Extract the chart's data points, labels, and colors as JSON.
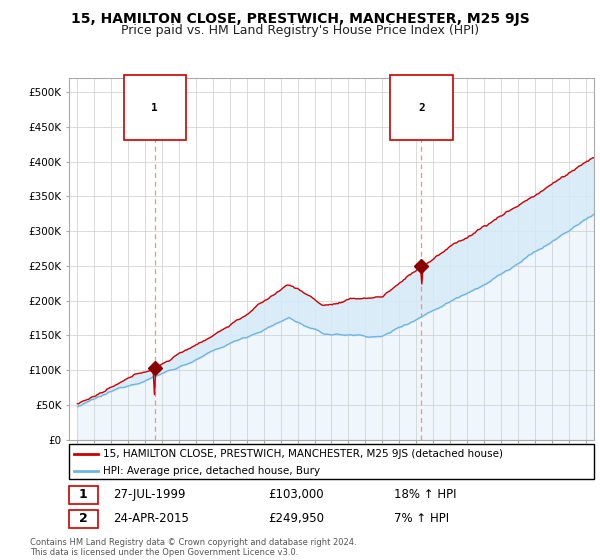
{
  "title": "15, HAMILTON CLOSE, PRESTWICH, MANCHESTER, M25 9JS",
  "subtitle": "Price paid vs. HM Land Registry's House Price Index (HPI)",
  "ylabel_ticks": [
    "£0",
    "£50K",
    "£100K",
    "£150K",
    "£200K",
    "£250K",
    "£300K",
    "£350K",
    "£400K",
    "£450K",
    "£500K"
  ],
  "ytick_values": [
    0,
    50000,
    100000,
    150000,
    200000,
    250000,
    300000,
    350000,
    400000,
    450000,
    500000
  ],
  "ylim": [
    0,
    520000
  ],
  "xlim_start": 1994.5,
  "xlim_end": 2025.5,
  "purchase1_x": 1999.57,
  "purchase1_y": 103000,
  "purchase2_x": 2015.31,
  "purchase2_y": 249950,
  "purchase1_date": "27-JUL-1999",
  "purchase1_price": "£103,000",
  "purchase1_hpi": "18% ↑ HPI",
  "purchase2_date": "24-APR-2015",
  "purchase2_price": "£249,950",
  "purchase2_hpi": "7% ↑ HPI",
  "hpi_line_color": "#6EB4E0",
  "hpi_fill_color": "#D6EAF8",
  "price_line_color": "#CC0000",
  "dot_color": "#8B0000",
  "vline_color": "#FF8888",
  "legend_label_price": "15, HAMILTON CLOSE, PRESTWICH, MANCHESTER, M25 9JS (detached house)",
  "legend_label_hpi": "HPI: Average price, detached house, Bury",
  "footer": "Contains HM Land Registry data © Crown copyright and database right 2024.\nThis data is licensed under the Open Government Licence v3.0.",
  "background_color": "#ffffff",
  "grid_color": "#cccccc",
  "title_fontsize": 10,
  "subtitle_fontsize": 9
}
